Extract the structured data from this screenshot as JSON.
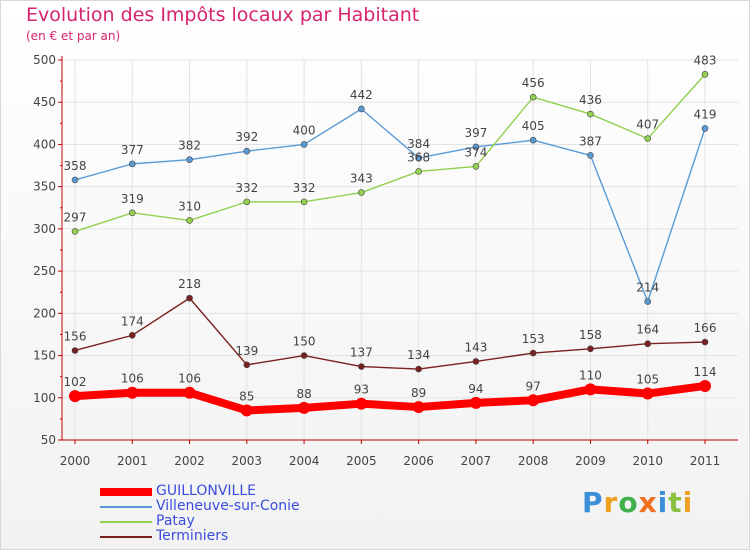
{
  "chart_data": {
    "type": "line",
    "title": "Evolution des Impôts locaux par Habitant",
    "subtitle": "(en € et par an)",
    "categories": [
      "2000",
      "2001",
      "2002",
      "2003",
      "2004",
      "2005",
      "2006",
      "2007",
      "2008",
      "2009",
      "2010",
      "2011"
    ],
    "ylim": [
      50,
      500
    ],
    "yticks": [
      50,
      100,
      150,
      200,
      250,
      300,
      350,
      400,
      450,
      500
    ],
    "series": [
      {
        "name": "GUILLONVILLE",
        "color": "#ff0000",
        "values": [
          102,
          106,
          106,
          85,
          88,
          93,
          89,
          94,
          97,
          110,
          105,
          114
        ]
      },
      {
        "name": "Villeneuve-sur-Conie",
        "color": "#5b9bd5",
        "values": [
          358,
          377,
          382,
          392,
          400,
          442,
          384,
          397,
          405,
          387,
          214,
          419
        ]
      },
      {
        "name": "Patay",
        "color": "#92d050",
        "values": [
          297,
          319,
          310,
          332,
          332,
          343,
          368,
          374,
          456,
          436,
          407,
          483
        ]
      },
      {
        "name": "Terminiers",
        "color": "#7b2020",
        "values": [
          156,
          174,
          218,
          139,
          150,
          137,
          134,
          143,
          153,
          158,
          164,
          166
        ]
      }
    ]
  },
  "brand": {
    "letters": [
      "P",
      "r",
      "o",
      "x",
      "i",
      "t",
      "i"
    ],
    "colors": [
      "#3a8fd8",
      "#f0a020",
      "#3fb04a",
      "#f07020",
      "#3a8fd8",
      "#8ac040",
      "#f0a020"
    ]
  }
}
